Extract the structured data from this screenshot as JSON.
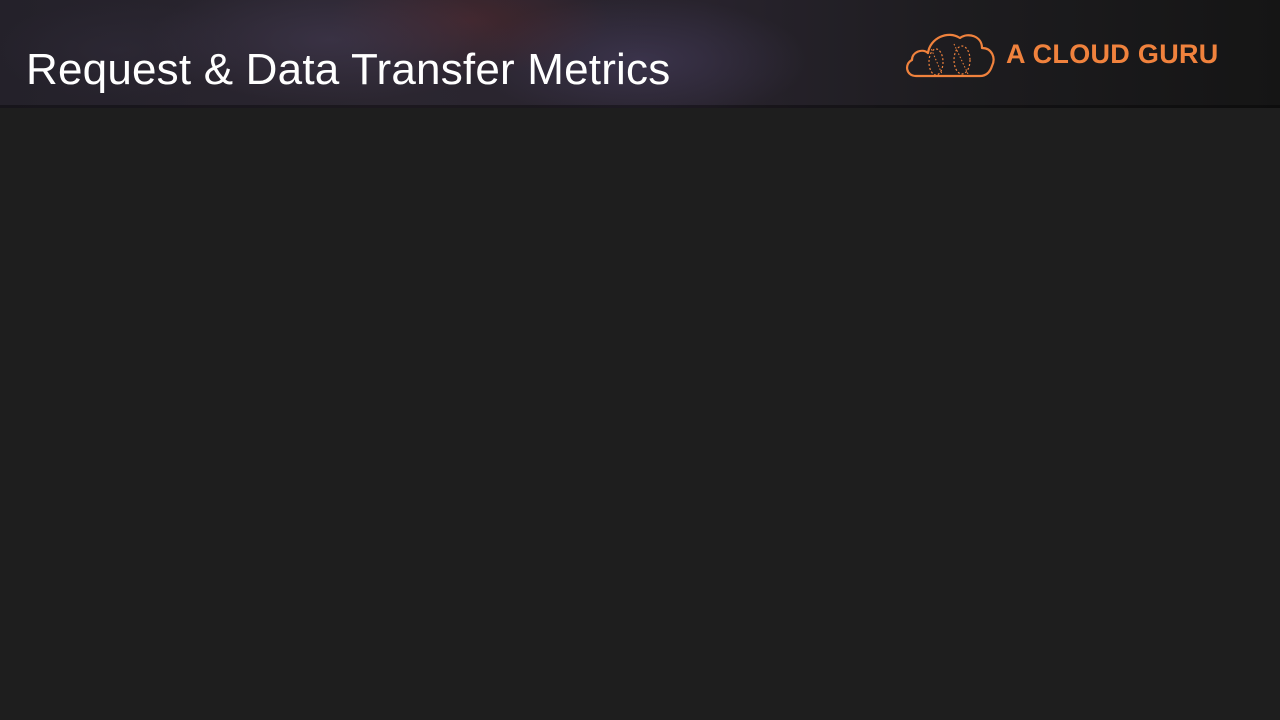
{
  "slide": {
    "title": "Request & Data Transfer Metrics"
  },
  "logo": {
    "icon": "cloud-guru-logo-icon",
    "text": "A CLOUD GURU",
    "color": "#f0823d"
  },
  "colors": {
    "background": "#1e1e1e",
    "title_text": "#ffffff",
    "accent": "#f0823d"
  }
}
